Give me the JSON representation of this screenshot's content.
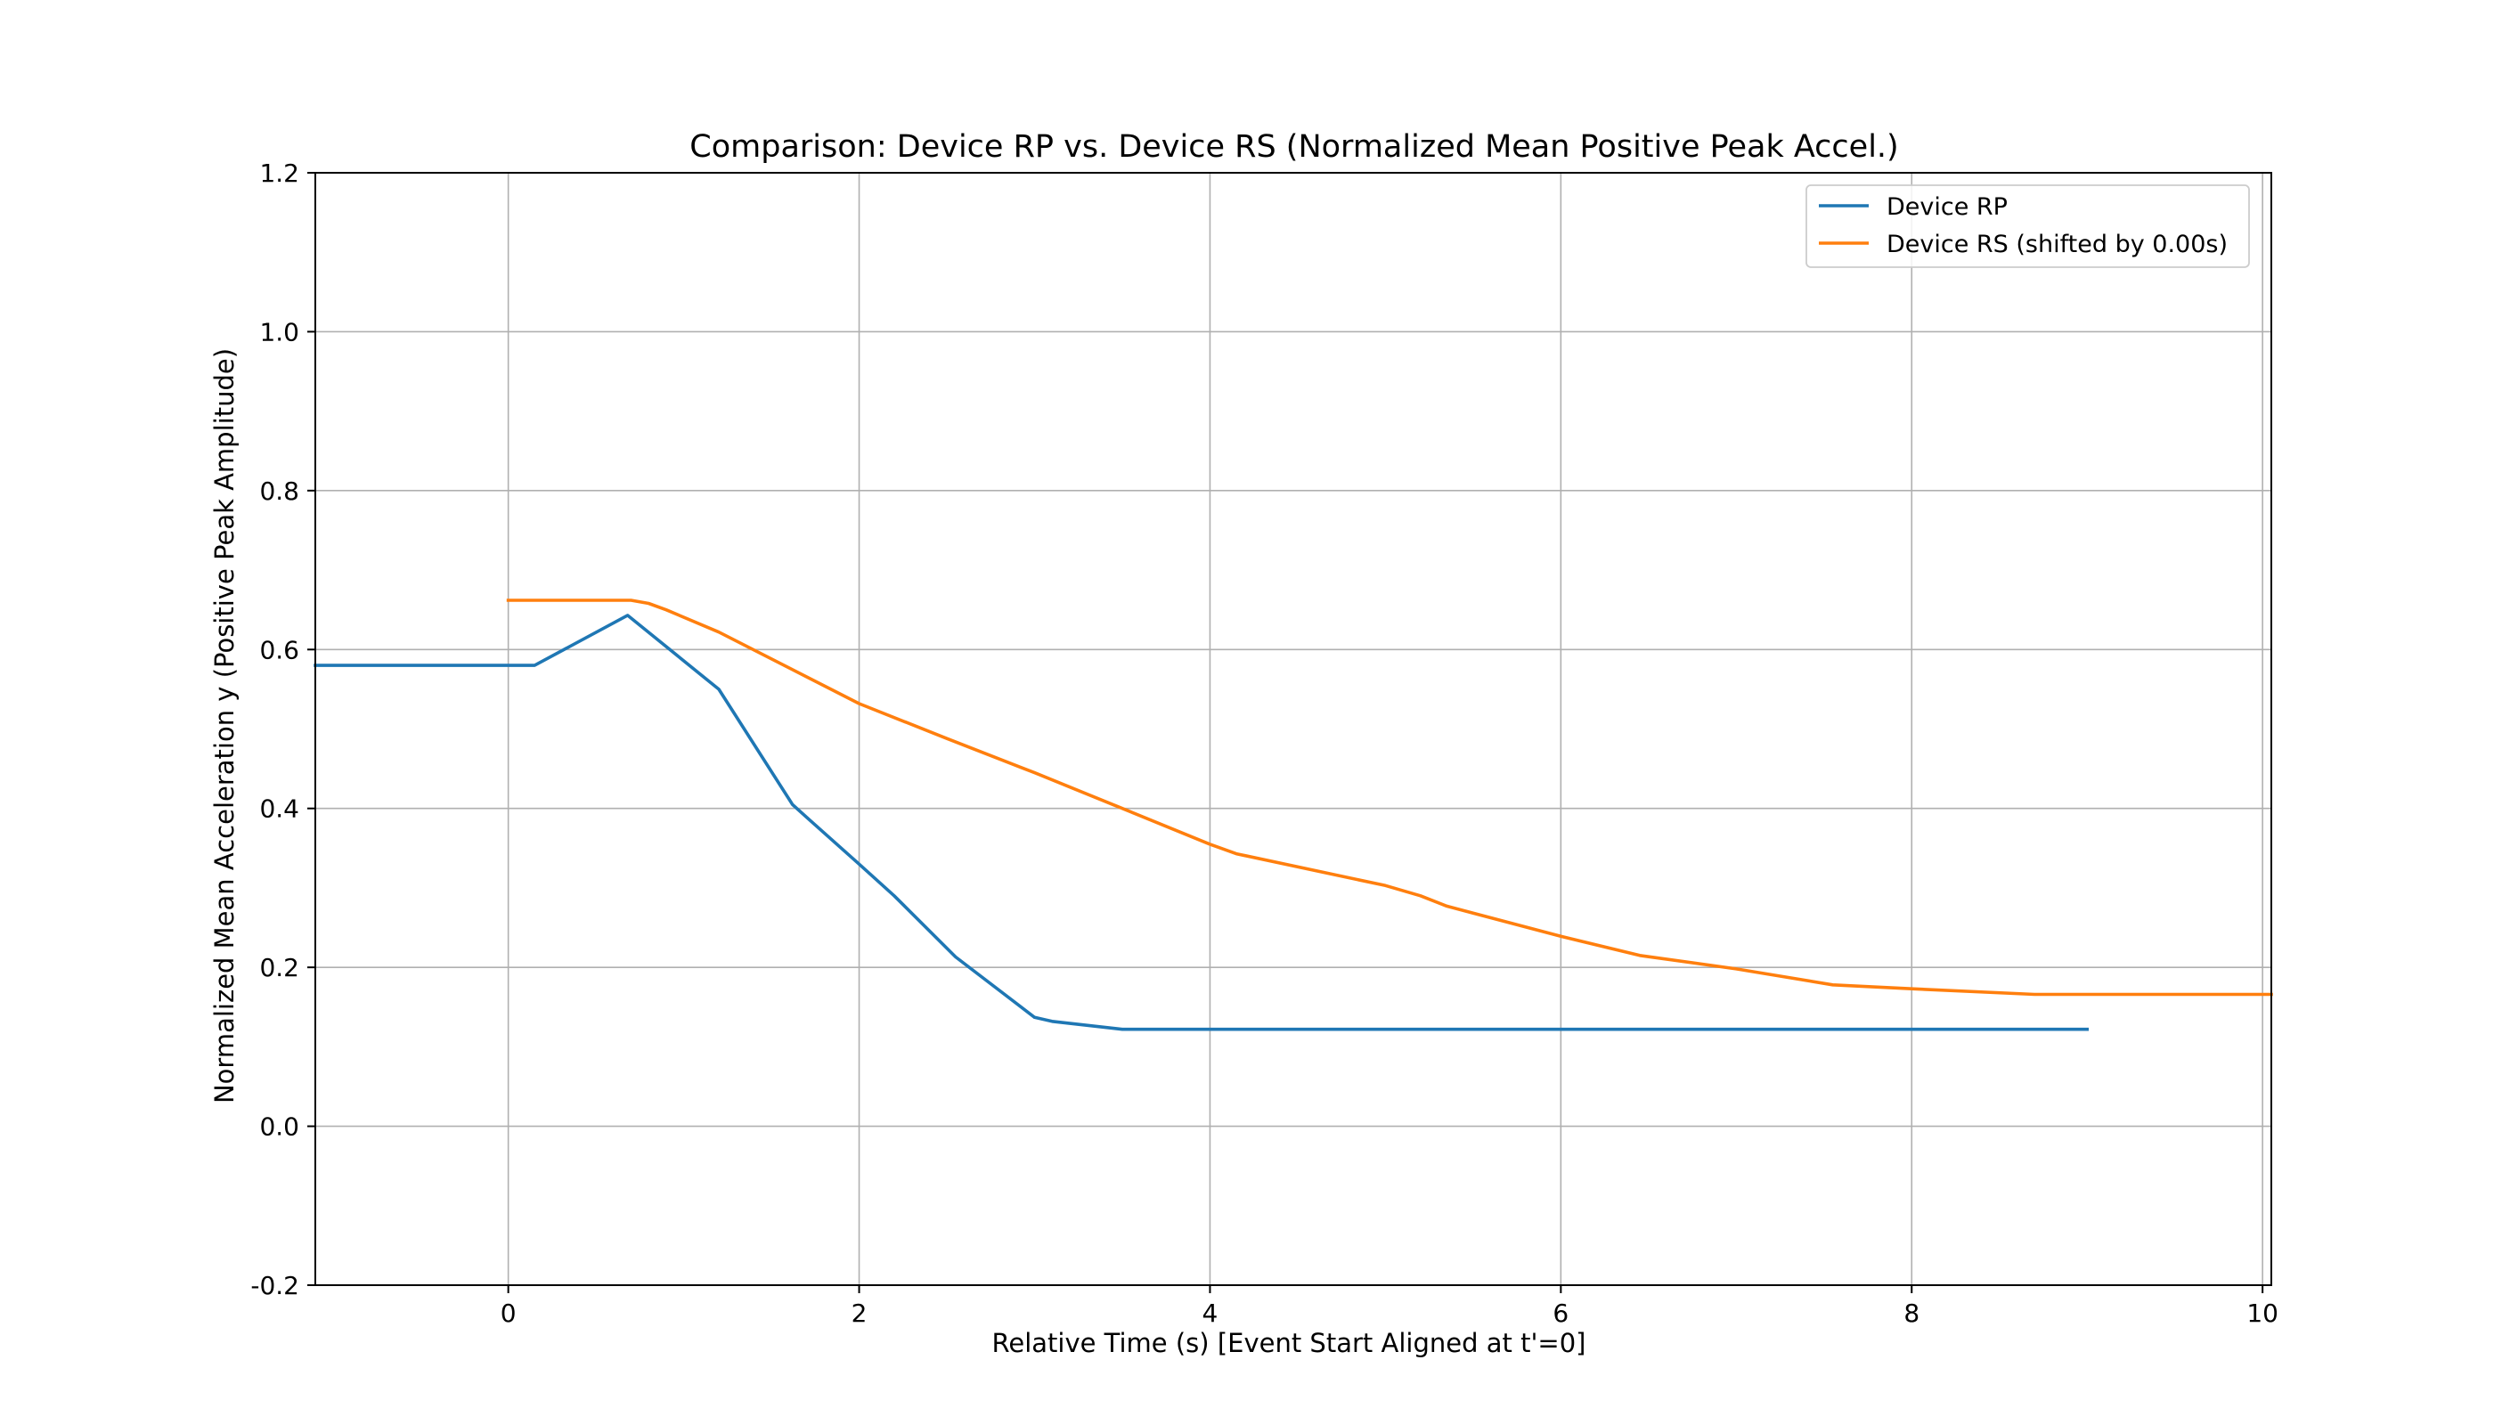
{
  "chart_data": {
    "type": "line",
    "title": "Comparison: Device RP vs. Device RS (Normalized Mean Positive Peak Accel.)",
    "xlabel": "Relative Time (s) [Event Start Aligned at t'=0]",
    "ylabel": "Normalized Mean Acceleration y (Positive Peak Amplitude)",
    "xlim": [
      -1.1,
      10.05
    ],
    "ylim": [
      -0.2,
      1.2
    ],
    "xticks": [
      0,
      2,
      4,
      6,
      8,
      10
    ],
    "yticks": [
      -0.2,
      0.0,
      0.2,
      0.4,
      0.6,
      0.8,
      1.0,
      1.2
    ],
    "xtick_labels": [
      "0",
      "2",
      "4",
      "6",
      "8",
      "10"
    ],
    "ytick_labels": [
      "-0.2",
      "0.0",
      "0.2",
      "0.4",
      "0.6",
      "0.8",
      "1.0",
      "1.2"
    ],
    "grid": true,
    "legend_position": "top-right",
    "series": [
      {
        "name": "Device RP",
        "color": "#1f77b4",
        "points": [
          [
            -1.1,
            0.58
          ],
          [
            0.0,
            0.58
          ],
          [
            0.15,
            0.58
          ],
          [
            0.68,
            0.643
          ],
          [
            1.2,
            0.55
          ],
          [
            1.62,
            0.405
          ],
          [
            1.72,
            0.385
          ],
          [
            2.0,
            0.33
          ],
          [
            2.2,
            0.29
          ],
          [
            2.55,
            0.213
          ],
          [
            3.0,
            0.137
          ],
          [
            3.1,
            0.132
          ],
          [
            3.5,
            0.122
          ],
          [
            4.0,
            0.122
          ],
          [
            6.0,
            0.122
          ],
          [
            8.0,
            0.122
          ],
          [
            9.0,
            0.122
          ]
        ]
      },
      {
        "name": "Device RS (shifted by 0.00s)",
        "color": "#ff7f0e",
        "points": [
          [
            0.0,
            0.662
          ],
          [
            0.7,
            0.662
          ],
          [
            0.8,
            0.658
          ],
          [
            0.9,
            0.65
          ],
          [
            1.2,
            0.622
          ],
          [
            2.0,
            0.532
          ],
          [
            2.5,
            0.488
          ],
          [
            3.0,
            0.445
          ],
          [
            3.5,
            0.4
          ],
          [
            4.0,
            0.355
          ],
          [
            4.15,
            0.343
          ],
          [
            5.0,
            0.303
          ],
          [
            5.2,
            0.29
          ],
          [
            5.35,
            0.277
          ],
          [
            6.0,
            0.239
          ],
          [
            6.45,
            0.215
          ],
          [
            7.0,
            0.198
          ],
          [
            7.55,
            0.178
          ],
          [
            8.0,
            0.173
          ],
          [
            8.7,
            0.166
          ],
          [
            9.0,
            0.166
          ],
          [
            10.05,
            0.166
          ]
        ]
      }
    ]
  }
}
